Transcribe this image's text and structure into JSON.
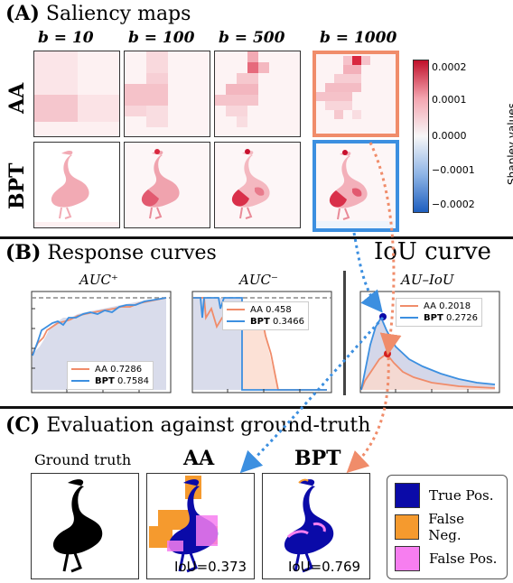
{
  "section_a": {
    "letter": "(A)",
    "title": "Saliency maps",
    "columns": [
      "b = 10",
      "b = 100",
      "b = 500",
      "b = 1000"
    ],
    "rows": [
      "AA",
      "BPT"
    ],
    "colorbar": {
      "label": "Shapley values",
      "ticks": [
        "0.0002",
        "0.0001",
        "0.0000",
        "−0.0001",
        "−0.0002"
      ],
      "colors": {
        "high": "#c0102a",
        "mid": "#f7f7f7",
        "low": "#1e5fbf"
      }
    },
    "highlight_colors": {
      "AA": "#f08c6a",
      "BPT": "#3c8fe0"
    }
  },
  "section_b": {
    "letter": "(B)",
    "title": "Response curves",
    "iou_title": "IoU curve",
    "charts": [
      {
        "title": "AUC⁺",
        "legend": [
          {
            "name": "AA",
            "value": "0.7286"
          },
          {
            "name": "BPT",
            "value": "0.7584"
          }
        ]
      },
      {
        "title": "AUC⁻",
        "legend": [
          {
            "name": "AA",
            "value": "0.458"
          },
          {
            "name": "BPT",
            "value": "0.3466"
          }
        ]
      },
      {
        "title": "AU–IoU",
        "legend": [
          {
            "name": "AA",
            "value": "0.2018"
          },
          {
            "name": "BPT",
            "value": "0.2726"
          }
        ]
      }
    ],
    "series_colors": {
      "AA": "#f08c6a",
      "BPT": "#3c8fe0"
    }
  },
  "section_c": {
    "letter": "(C)",
    "title": "Evaluation against ground-truth",
    "panels": [
      {
        "title": "Ground truth",
        "iou": ""
      },
      {
        "title": "AA",
        "iou": "IoU=0.373"
      },
      {
        "title": "BPT",
        "iou": "IoU=0.769"
      }
    ],
    "key": [
      {
        "label": "True Pos.",
        "color": "#0a0aa8"
      },
      {
        "label": "False Neg.",
        "color": "#f59a2e"
      },
      {
        "label": "False Pos.",
        "color": "#f77ef0"
      }
    ]
  }
}
